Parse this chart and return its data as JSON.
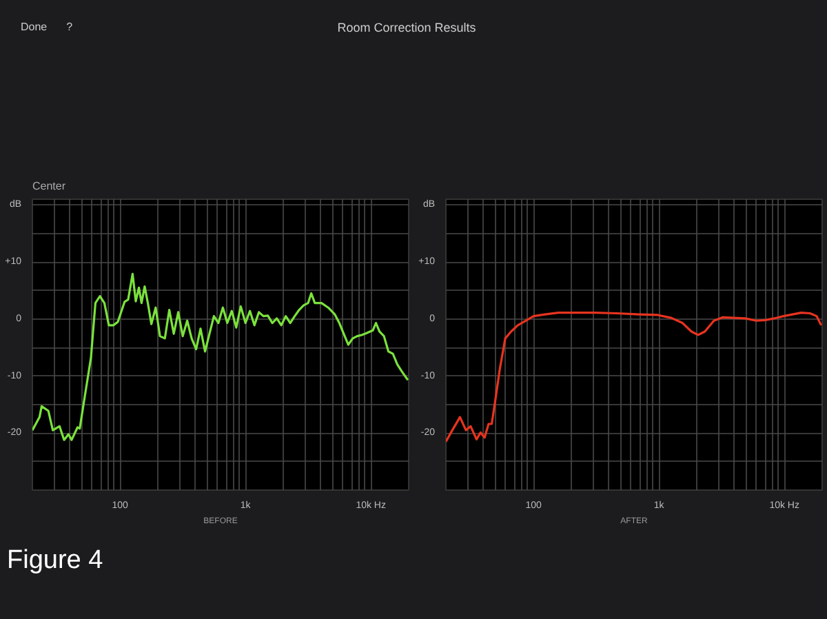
{
  "chart_data": [
    {
      "type": "line",
      "title": "Room Correction Results",
      "subtitle": "Center",
      "xlabel": "BEFORE",
      "annotations": [
        "Done",
        "?"
      ],
      "xlim": [
        20,
        20000
      ],
      "ylim": [
        -30,
        21
      ],
      "xticks": [
        {
          "value": 20,
          "label": null
        },
        {
          "value": 30,
          "label": null
        },
        {
          "value": 40,
          "label": null
        },
        {
          "value": 50,
          "label": null
        },
        {
          "value": 60,
          "label": null
        },
        {
          "value": 70,
          "label": null
        },
        {
          "value": 80,
          "label": null
        },
        {
          "value": 90,
          "label": null
        },
        {
          "value": 100,
          "label": "100"
        },
        {
          "value": 200,
          "label": null
        },
        {
          "value": 300,
          "label": null
        },
        {
          "value": 400,
          "label": null
        },
        {
          "value": 500,
          "label": null
        },
        {
          "value": 600,
          "label": null
        },
        {
          "value": 700,
          "label": null
        },
        {
          "value": 800,
          "label": null
        },
        {
          "value": 900,
          "label": null
        },
        {
          "value": 1000,
          "label": "1k"
        },
        {
          "value": 2000,
          "label": null
        },
        {
          "value": 3000,
          "label": null
        },
        {
          "value": 4000,
          "label": null
        },
        {
          "value": 5000,
          "label": null
        },
        {
          "value": 6000,
          "label": null
        },
        {
          "value": 7000,
          "label": null
        },
        {
          "value": 8000,
          "label": null
        },
        {
          "value": 9000,
          "label": null
        },
        {
          "value": 10000,
          "label": "10k Hz"
        },
        {
          "value": 20000,
          "label": null
        }
      ],
      "yticks": [
        {
          "value": 20,
          "label": "dB"
        },
        {
          "value": 15,
          "label": null
        },
        {
          "value": 10,
          "label": "+10"
        },
        {
          "value": 5,
          "label": null
        },
        0,
        {
          "value": -5,
          "label": null
        },
        -10,
        {
          "value": -15,
          "label": null
        },
        -20,
        {
          "value": -25,
          "label": null
        }
      ],
      "log": "x",
      "grid": true,
      "series": [
        {
          "color": "#7be23c",
          "x": [
            20,
            22.8,
            23.7,
            26.8,
            29.1,
            32.9,
            35.8,
            38.8,
            41.1,
            45.8,
            47.7,
            51.8,
            58.6,
            63.6,
            69.1,
            75,
            81.4,
            88.4,
            96,
            108.6,
            116,
            125.9,
            133.4,
            141.3,
            148.3,
            157.1,
            166.5,
            177.7,
            192.3,
            208,
            227.6,
            246.9,
            268,
            291,
            316,
            343,
            372,
            404,
            438,
            476,
            516,
            560,
            608,
            660,
            716,
            777,
            844,
            916,
            1000,
            1085,
            1178,
            1279,
            1389,
            1507,
            1637,
            1777,
            1929,
            2094,
            2274,
            2468,
            2679,
            2909,
            3158,
            3345,
            3573,
            4038,
            4563,
            5157,
            5598,
            6077,
            6597,
            7162,
            7775,
            8440,
            9163,
            10355,
            10969,
            11700,
            12703,
            13790,
            14970,
            16252,
            17640,
            19700
          ],
          "values": [
            -19.5,
            -17.2,
            -15.3,
            -16.1,
            -19.5,
            -18.8,
            -21.2,
            -20.2,
            -21.2,
            -19,
            -19.2,
            -14.2,
            -6.8,
            2.8,
            4,
            2.8,
            -1.1,
            -1.1,
            -0.5,
            3,
            3.4,
            7.9,
            3.1,
            5.5,
            2.8,
            5.7,
            2.8,
            -0.9,
            2,
            -3,
            -3.4,
            1.6,
            -2.6,
            1.2,
            -3,
            -0.3,
            -3.4,
            -5.3,
            -1.7,
            -5.7,
            -2.6,
            0.5,
            -0.7,
            2,
            -0.7,
            1.4,
            -1.5,
            2.2,
            -0.7,
            1.4,
            -1.1,
            1.2,
            0.5,
            0.6,
            -0.7,
            0.1,
            -1.1,
            0.5,
            -0.7,
            0.5,
            1.6,
            2.4,
            2.8,
            4.5,
            2.8,
            2.8,
            2,
            0.8,
            -0.7,
            -2.6,
            -4.5,
            -3.4,
            -3,
            -2.8,
            -2.5,
            -2,
            -0.7,
            -2.2,
            -3,
            -5.7,
            -6.1,
            -8,
            -9.2,
            -10.7
          ]
        }
      ]
    },
    {
      "type": "line",
      "xlabel": "AFTER",
      "annotations": [
        "Figure 4"
      ],
      "xlim": [
        20,
        20000
      ],
      "ylim": [
        -30,
        21
      ],
      "xticks": [
        {
          "value": 20,
          "label": null
        },
        {
          "value": 30,
          "label": null
        },
        {
          "value": 40,
          "label": null
        },
        {
          "value": 50,
          "label": null
        },
        {
          "value": 60,
          "label": null
        },
        {
          "value": 70,
          "label": null
        },
        {
          "value": 80,
          "label": null
        },
        {
          "value": 90,
          "label": null
        },
        {
          "value": 100,
          "label": "100"
        },
        {
          "value": 200,
          "label": null
        },
        {
          "value": 300,
          "label": null
        },
        {
          "value": 400,
          "label": null
        },
        {
          "value": 500,
          "label": null
        },
        {
          "value": 600,
          "label": null
        },
        {
          "value": 700,
          "label": null
        },
        {
          "value": 800,
          "label": null
        },
        {
          "value": 900,
          "label": null
        },
        {
          "value": 1000,
          "label": "1k"
        },
        {
          "value": 2000,
          "label": null
        },
        {
          "value": 3000,
          "label": null
        },
        {
          "value": 4000,
          "label": null
        },
        {
          "value": 5000,
          "label": null
        },
        {
          "value": 6000,
          "label": null
        },
        {
          "value": 7000,
          "label": null
        },
        {
          "value": 8000,
          "label": null
        },
        {
          "value": 9000,
          "label": null
        },
        {
          "value": 10000,
          "label": "10k Hz"
        },
        {
          "value": 20000,
          "label": null
        }
      ],
      "yticks": [
        {
          "value": 20,
          "label": "dB"
        },
        {
          "value": 15,
          "label": null
        },
        {
          "value": 10,
          "label": "+10"
        },
        {
          "value": 5,
          "label": null
        },
        0,
        {
          "value": -5,
          "label": null
        },
        -10,
        {
          "value": -15,
          "label": null
        },
        -20,
        {
          "value": -25,
          "label": null
        }
      ],
      "log": "x",
      "grid": true,
      "series": [
        {
          "color": "#e8341f",
          "x": [
            20,
            22.5,
            25.9,
            28.9,
            31.5,
            35.1,
            37.8,
            40.7,
            43.8,
            46.4,
            49.6,
            53.8,
            59.5,
            66.2,
            74.9,
            88.4,
            100,
            122.9,
            157.5,
            201.6,
            305,
            460,
            695,
            975,
            1250,
            1540,
            1815,
            2050,
            2320,
            2740,
            3230,
            3960,
            4870,
            5980,
            7040,
            8280,
            9840,
            11570,
            13610,
            15990,
            18080,
            19630
          ],
          "values": [
            -21.5,
            -19.5,
            -17.2,
            -19.5,
            -18.8,
            -21.1,
            -19.9,
            -20.8,
            -18.4,
            -18.4,
            -14.2,
            -8.8,
            -3.4,
            -2.2,
            -1.1,
            -0.2,
            0.5,
            0.8,
            1.1,
            1.1,
            1.1,
            1,
            0.8,
            0.7,
            0.2,
            -0.7,
            -2.2,
            -2.8,
            -2.2,
            -0.3,
            0.3,
            0.2,
            0.1,
            -0.3,
            -0.2,
            0.1,
            0.5,
            0.8,
            1.1,
            1,
            0.5,
            -1.1
          ]
        }
      ]
    }
  ]
}
